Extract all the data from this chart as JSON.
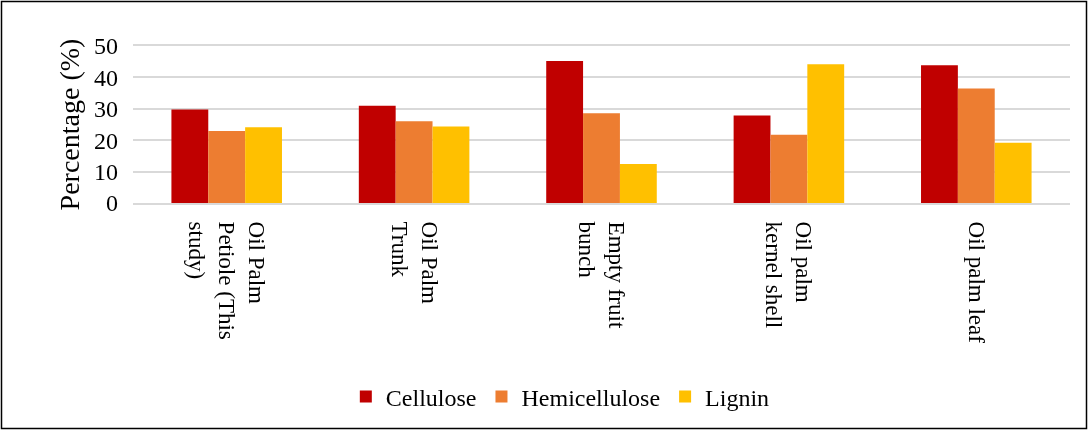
{
  "chart_data": {
    "type": "bar",
    "ylabel": "Percentage (%)",
    "categories": [
      "Oil Palm Petiole (This study)",
      "Oil Palm Trunk",
      "Empty fruit bunch",
      "Oil palm kernel shell",
      "Oil palm leaf"
    ],
    "series": [
      {
        "name": "Cellulose",
        "color": "#c00000",
        "values": [
          29.8,
          31.0,
          45.2,
          27.9,
          43.9
        ]
      },
      {
        "name": "Hemicellulose",
        "color": "#ed7d31",
        "values": [
          22.9,
          26.0,
          28.6,
          21.7,
          36.5
        ]
      },
      {
        "name": "Lignin",
        "color": "#ffc000",
        "values": [
          24.1,
          24.4,
          12.4,
          44.2,
          19.2
        ]
      }
    ],
    "ylim": [
      0,
      50
    ],
    "yticks": [
      0,
      10,
      20,
      30,
      40,
      50
    ],
    "grid": "y",
    "legend": "bottom"
  }
}
